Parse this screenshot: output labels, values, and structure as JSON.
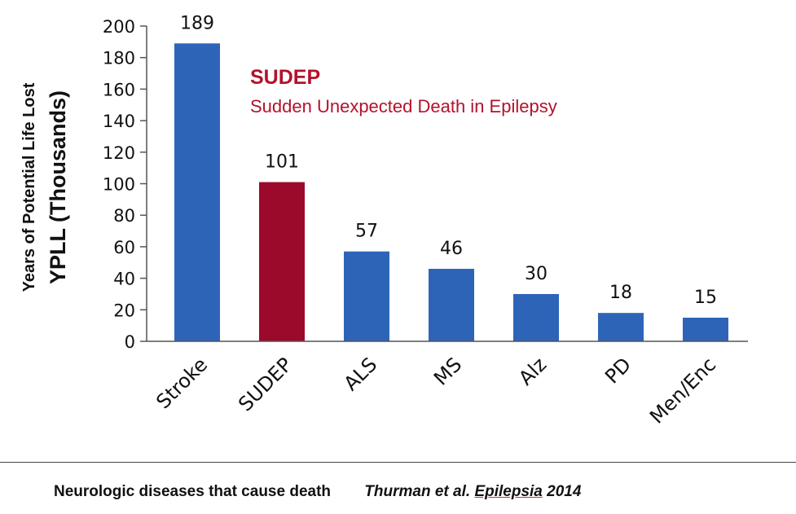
{
  "chart_data": {
    "type": "bar",
    "categories": [
      "Stroke",
      "SUDEP",
      "ALS",
      "MS",
      "Alz",
      "PD",
      "Men/Enc"
    ],
    "values": [
      189,
      101,
      57,
      46,
      30,
      18,
      15
    ],
    "data_labels": [
      "189",
      "101",
      "57",
      "46",
      "30",
      "18",
      "15"
    ],
    "bar_colors": [
      "#2e64b8",
      "#9b0a2b",
      "#2e64b8",
      "#2e64b8",
      "#2e64b8",
      "#2e64b8",
      "#2e64b8"
    ],
    "ylabel_line1": "Years of Potential Life Lost",
    "ylabel_line2": "YPLL (Thousands)",
    "ylim": [
      0,
      200
    ],
    "yticks": [
      0,
      20,
      40,
      60,
      80,
      100,
      120,
      140,
      160,
      180,
      200
    ],
    "grid": false,
    "legend": "none",
    "annotation": {
      "title": "SUDEP",
      "subtitle": "Sudden Unexpected Death in Epilepsy",
      "color": "#b3122c"
    }
  },
  "footer": {
    "caption": "Neurologic diseases that cause death",
    "citation_author": "Thurman et al.",
    "citation_journal": "Epilepsia",
    "citation_year": "2014"
  }
}
